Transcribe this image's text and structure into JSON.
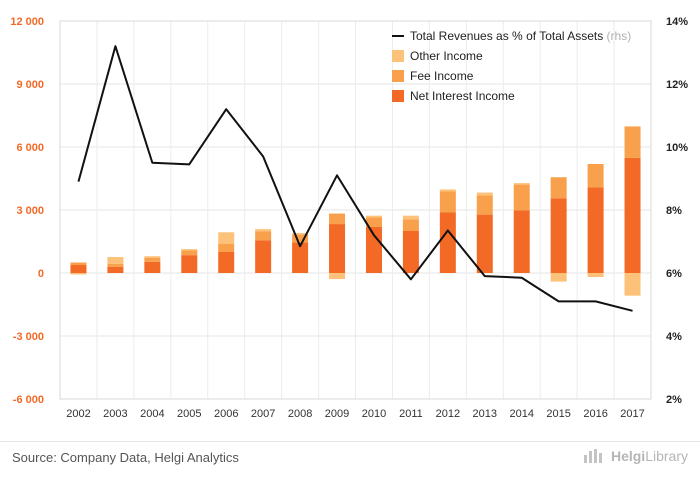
{
  "chart_data": {
    "type": "bar",
    "categories": [
      "2002",
      "2003",
      "2004",
      "2005",
      "2006",
      "2007",
      "2008",
      "2009",
      "2010",
      "2011",
      "2012",
      "2013",
      "2014",
      "2015",
      "2016",
      "2017"
    ],
    "series": [
      {
        "name": "Net Interest Income",
        "kind": "bar",
        "axis": "left",
        "color": "#f36a27",
        "values": [
          380,
          300,
          530,
          850,
          1000,
          1560,
          1460,
          2330,
          2190,
          2000,
          2880,
          2780,
          2980,
          3560,
          4070,
          5480
        ]
      },
      {
        "name": "Fee Income",
        "kind": "bar",
        "axis": "left",
        "color": "#f9a04c",
        "values": [
          120,
          130,
          200,
          230,
          380,
          430,
          380,
          500,
          460,
          550,
          1000,
          920,
          1230,
          1000,
          1120,
          1500
        ]
      },
      {
        "name": "Other Income",
        "kind": "bar",
        "axis": "left",
        "color": "#fdc27a",
        "values": [
          -70,
          330,
          70,
          60,
          560,
          100,
          60,
          -290,
          80,
          180,
          100,
          130,
          70,
          -410,
          -190,
          -1080
        ]
      },
      {
        "name": "Total Revenues as % of Total Assets",
        "kind": "line",
        "axis": "right",
        "color": "#111111",
        "values": [
          8.9,
          13.2,
          9.5,
          9.45,
          11.2,
          9.7,
          6.85,
          9.1,
          7.2,
          5.8,
          7.35,
          5.9,
          5.85,
          5.1,
          5.1,
          4.8
        ]
      }
    ],
    "legend": [
      {
        "label": "Total Revenues as % of Total Assets",
        "suffix": "(rhs)",
        "kind": "line",
        "color": "#111111"
      },
      {
        "label": "Other Income",
        "kind": "bar",
        "color": "#fdc27a"
      },
      {
        "label": "Fee Income",
        "kind": "bar",
        "color": "#f9a04c"
      },
      {
        "label": "Net Interest Income",
        "kind": "bar",
        "color": "#f36a27"
      }
    ],
    "legend_position": "top-right",
    "ylim": [
      -6000,
      12000
    ],
    "yticks": [
      -6000,
      -3000,
      0,
      3000,
      6000,
      9000,
      12000
    ],
    "ytick_labels": [
      "-6 000",
      "-3 000",
      "0",
      "3 000",
      "6 000",
      "9 000",
      "12 000"
    ],
    "y2lim": [
      2,
      14
    ],
    "y2ticks": [
      2,
      4,
      6,
      8,
      10,
      12,
      14
    ],
    "y2tick_labels": [
      "2%",
      "4%",
      "6%",
      "8%",
      "10%",
      "12%",
      "14%"
    ],
    "left_axis_color": "#f36a27",
    "grid": true
  },
  "source": "Source: Company Data, Helgi Analytics",
  "logo": {
    "brand": "Helgi",
    "suffix": "Library"
  }
}
